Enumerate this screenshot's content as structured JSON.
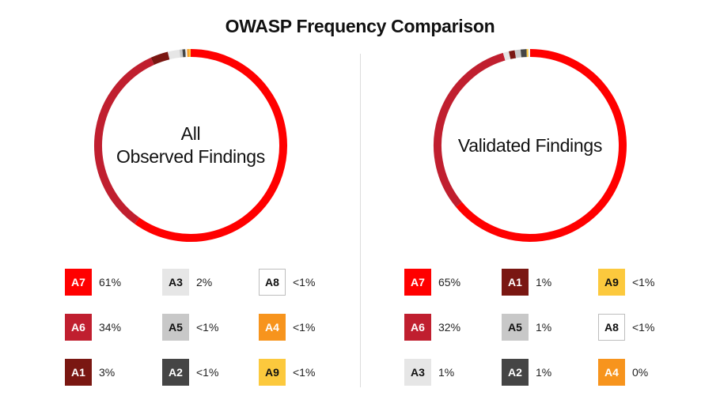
{
  "title": "OWASP Frequency Comparison",
  "chart_data": [
    {
      "type": "pie",
      "center_label": [
        "All",
        "Observed Findings"
      ],
      "slices": [
        {
          "label": "A7",
          "value": 61,
          "display": "61%",
          "color": "#ff0000",
          "text_color": "#ffffff"
        },
        {
          "label": "A6",
          "value": 34,
          "display": "34%",
          "color": "#c01f2f",
          "text_color": "#ffffff"
        },
        {
          "label": "A1",
          "value": 3,
          "display": "3%",
          "color": "#7a1712",
          "text_color": "#ffffff"
        },
        {
          "label": "A3",
          "value": 2,
          "display": "2%",
          "color": "#e6e6e6",
          "text_color": "#111111"
        },
        {
          "label": "A5",
          "value": 0.5,
          "display": "<1%",
          "color": "#c8c8c8",
          "text_color": "#111111"
        },
        {
          "label": "A2",
          "value": 0.5,
          "display": "<1%",
          "color": "#454545",
          "text_color": "#ffffff"
        },
        {
          "label": "A8",
          "value": 0.3,
          "display": "<1%",
          "color": "#ffffff",
          "text_color": "#111111",
          "border": "#bdbdbd"
        },
        {
          "label": "A4",
          "value": 0.3,
          "display": "<1%",
          "color": "#f7941d",
          "text_color": "#ffffff"
        },
        {
          "label": "A9",
          "value": 0.3,
          "display": "<1%",
          "color": "#fcc93d",
          "text_color": "#111111"
        }
      ]
    },
    {
      "type": "pie",
      "center_label": [
        "Validated Findings"
      ],
      "slices": [
        {
          "label": "A7",
          "value": 65,
          "display": "65%",
          "color": "#ff0000",
          "text_color": "#ffffff"
        },
        {
          "label": "A6",
          "value": 32,
          "display": "32%",
          "color": "#c01f2f",
          "text_color": "#ffffff"
        },
        {
          "label": "A3",
          "value": 1,
          "display": "1%",
          "color": "#e6e6e6",
          "text_color": "#111111"
        },
        {
          "label": "A1",
          "value": 1,
          "display": "1%",
          "color": "#7a1712",
          "text_color": "#ffffff"
        },
        {
          "label": "A5",
          "value": 1,
          "display": "1%",
          "color": "#c8c8c8",
          "text_color": "#111111"
        },
        {
          "label": "A2",
          "value": 1,
          "display": "1%",
          "color": "#454545",
          "text_color": "#ffffff"
        },
        {
          "label": "A9",
          "value": 0.3,
          "display": "<1%",
          "color": "#fcc93d",
          "text_color": "#111111"
        },
        {
          "label": "A8",
          "value": 0.3,
          "display": "<1%",
          "color": "#ffffff",
          "text_color": "#111111",
          "border": "#bdbdbd"
        },
        {
          "label": "A4",
          "value": 0,
          "display": "0%",
          "color": "#f7941d",
          "text_color": "#ffffff"
        }
      ]
    }
  ]
}
